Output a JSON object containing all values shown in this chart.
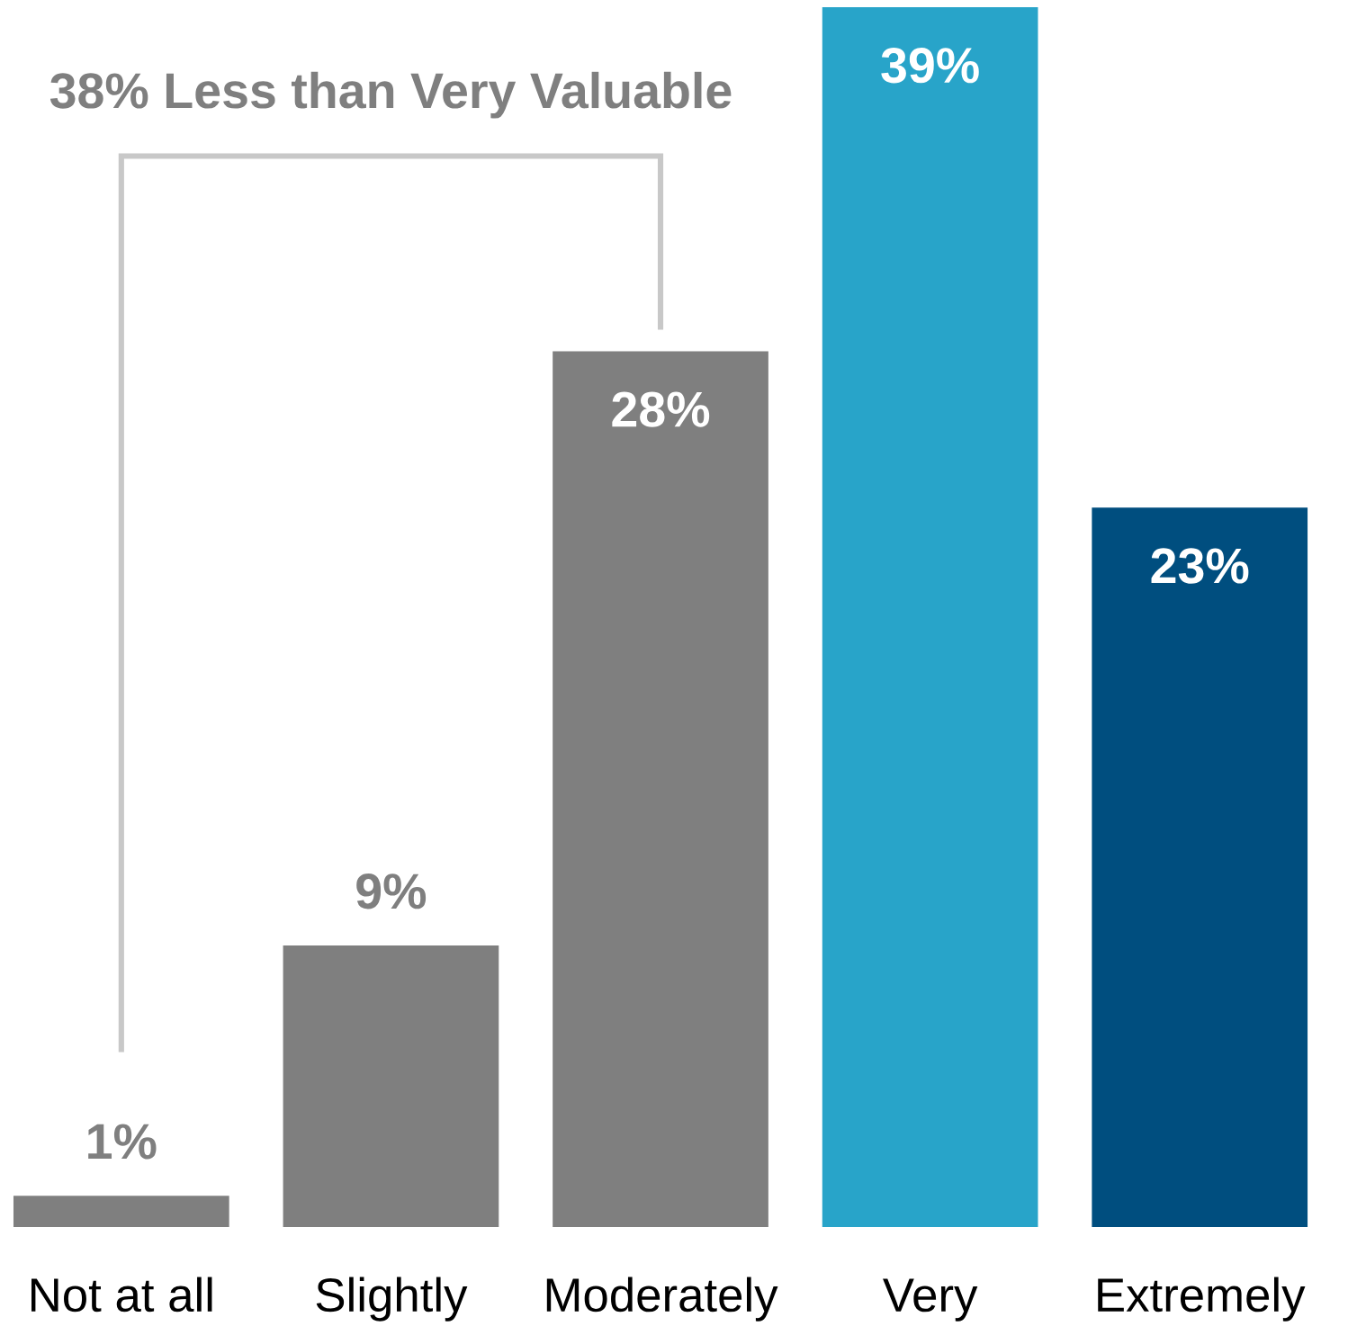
{
  "chart_data": {
    "type": "bar",
    "categories": [
      "Not at all",
      "Slightly",
      "Moderately",
      "Very",
      "Extremely"
    ],
    "values": [
      1,
      9,
      28,
      39,
      23
    ],
    "colors": [
      "#7f7f7f",
      "#7f7f7f",
      "#7f7f7f",
      "#28a4c9",
      "#004e7f"
    ],
    "value_labels": [
      "1%",
      "9%",
      "28%",
      "39%",
      "23%"
    ],
    "annotations": [
      "38% Less than Very Valuable"
    ],
    "ylim": [
      0,
      39
    ],
    "tick_labels": "x"
  }
}
